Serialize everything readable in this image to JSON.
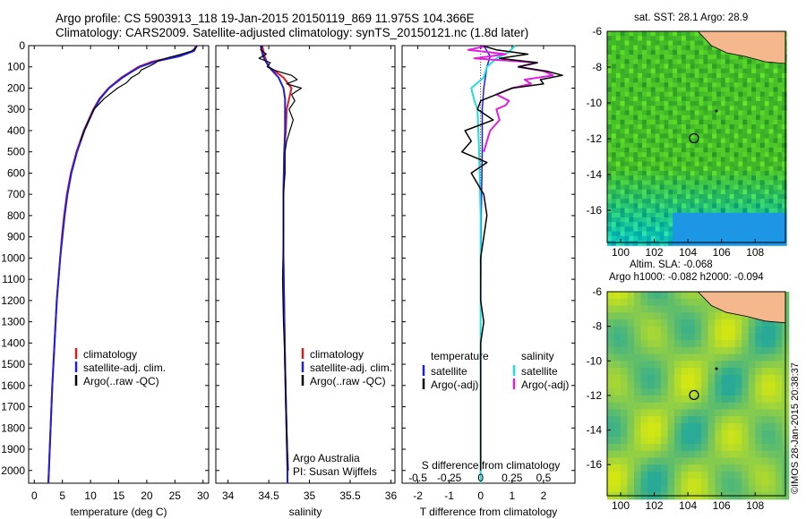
{
  "titles": {
    "line1": "Argo profile: CS 5903913_118 19-Jan-2015 20150119_869 11.975S 104.366E",
    "line2": "Climatology: CARS2009. Satellite-adjusted climatology: synTS_20150121.nc (1.8d later)"
  },
  "colors": {
    "climatology": "#e31a1c",
    "satellite": "#1f1fe0",
    "argo": "#000000",
    "sat_s": "#22dddd",
    "argo_s": "#e020e0",
    "land": "#f4b88c"
  },
  "chart_data": [
    {
      "type": "line",
      "id": "temperature",
      "xlabel": "temperature (deg C)",
      "ylim": [
        2060,
        0
      ],
      "xlim": [
        -1,
        31
      ],
      "xticks": [
        0,
        5,
        10,
        15,
        20,
        25,
        30
      ],
      "yticks": [
        0,
        100,
        200,
        300,
        400,
        500,
        600,
        700,
        800,
        900,
        1000,
        1100,
        1200,
        1300,
        1400,
        1500,
        1600,
        1700,
        1800,
        1900,
        2000
      ],
      "legend": [
        "climatology",
        "satellite-adj. clim.",
        "Argo(..raw -QC)"
      ],
      "series": [
        {
          "name": "climatology",
          "depth": [
            0,
            25,
            50,
            75,
            100,
            125,
            150,
            200,
            250,
            300,
            400,
            500,
            600,
            700,
            800,
            900,
            1000,
            1200,
            1400,
            1600,
            1800,
            2000,
            2060
          ],
          "values": [
            28.8,
            28.3,
            25.5,
            21,
            18.5,
            17,
            15.5,
            13.2,
            11.6,
            10.5,
            8.8,
            7.5,
            6.5,
            5.8,
            5.3,
            4.9,
            4.6,
            4.0,
            3.6,
            3.2,
            2.9,
            2.6,
            2.5
          ]
        },
        {
          "name": "satellite-adj. clim.",
          "depth": [
            0,
            25,
            50,
            75,
            100,
            125,
            150,
            200,
            250,
            300,
            400,
            500,
            600,
            700,
            800,
            900,
            1000,
            1200,
            1400,
            1600,
            1800,
            2000,
            2060
          ],
          "values": [
            28.9,
            28.4,
            25.8,
            21.5,
            18.8,
            17.2,
            15.7,
            13.3,
            11.7,
            10.6,
            8.9,
            7.6,
            6.6,
            5.9,
            5.4,
            5.0,
            4.6,
            4.0,
            3.6,
            3.2,
            2.9,
            2.6,
            2.5
          ]
        },
        {
          "name": "Argo(..raw -QC)",
          "depth": [
            2,
            10,
            25,
            40,
            55,
            70,
            85,
            100,
            115,
            130,
            150,
            175,
            200,
            225,
            250,
            275,
            300,
            350,
            400,
            450
          ],
          "values": [
            28.9,
            28.7,
            28.0,
            26.2,
            24.0,
            22.1,
            21.3,
            20.2,
            19.0,
            18.6,
            17.3,
            16.4,
            14.8,
            13.6,
            12.4,
            11.5,
            10.6,
            9.7,
            8.9,
            8.2
          ]
        }
      ]
    },
    {
      "type": "line",
      "id": "salinity",
      "xlabel": "salinity",
      "ylim": [
        2060,
        0
      ],
      "xlim": [
        33.85,
        36.05
      ],
      "xticks": [
        34,
        34.5,
        35,
        35.5,
        36
      ],
      "legend": [
        "climatology",
        "satellite-adj. clim.",
        "Argo(..raw -QC)"
      ],
      "annotation": [
        "Argo Australia",
        "PI: Susan Wijffels"
      ],
      "series": [
        {
          "name": "climatology",
          "depth": [
            0,
            50,
            100,
            150,
            200,
            250,
            300,
            400,
            500,
            700,
            1000,
            1500,
            2000,
            2060
          ],
          "values": [
            34.42,
            34.45,
            34.5,
            34.68,
            34.78,
            34.75,
            34.72,
            34.71,
            34.69,
            34.68,
            34.68,
            34.7,
            34.73,
            34.73
          ]
        },
        {
          "name": "satellite-adj. clim.",
          "depth": [
            0,
            50,
            100,
            150,
            200,
            250,
            300,
            400,
            500,
            700,
            1000,
            1500,
            2000,
            2060
          ],
          "values": [
            34.4,
            34.43,
            34.5,
            34.62,
            34.68,
            34.7,
            34.7,
            34.7,
            34.69,
            34.68,
            34.68,
            34.7,
            34.73,
            34.73
          ]
        },
        {
          "name": "Argo(..raw -QC)",
          "depth": [
            2,
            20,
            40,
            60,
            80,
            100,
            120,
            140,
            160,
            180,
            200,
            230,
            260,
            300,
            350,
            400,
            450,
            500,
            600,
            700,
            900,
            1100,
            1300,
            1500,
            1700,
            1900,
            2000
          ],
          "values": [
            34.42,
            34.4,
            34.47,
            34.38,
            34.52,
            34.48,
            34.6,
            34.78,
            34.85,
            34.72,
            34.9,
            34.78,
            34.82,
            34.75,
            34.8,
            34.76,
            34.72,
            34.7,
            34.7,
            34.68,
            34.68,
            34.67,
            34.68,
            34.7,
            34.71,
            34.73,
            34.74
          ]
        }
      ]
    },
    {
      "type": "line",
      "id": "difference",
      "xlabel": "T difference from climatology",
      "xlabel_top": "S difference from climatology",
      "ylim": [
        2060,
        0
      ],
      "xlim": [
        -2.5,
        3.0
      ],
      "xticks": [
        -2,
        -1,
        0,
        1,
        2
      ],
      "sticks_labels": [
        "-0.5",
        "-0.25",
        "0",
        "0.25",
        "0.5"
      ],
      "sticks_at": [
        -2,
        -1,
        0,
        1,
        2
      ],
      "legend_temp_title": "temperature",
      "legend_sal_title": "salinity",
      "legend_temp": [
        "satellite",
        "Argo(-adj)"
      ],
      "legend_sal": [
        "satellite",
        "Argo(-adj)"
      ],
      "series": [
        {
          "name": "T satellite",
          "depth": [
            0,
            50,
            100,
            150,
            200,
            300,
            500,
            800,
            1200,
            1600,
            2000,
            2060
          ],
          "values": [
            0.1,
            0.3,
            0.2,
            0.15,
            0.1,
            0.05,
            0.05,
            0.02,
            0.0,
            0.0,
            0.0,
            0.0
          ]
        },
        {
          "name": "T Argo(-adj)",
          "depth": [
            2,
            20,
            40,
            60,
            80,
            100,
            120,
            140,
            160,
            180,
            200,
            230,
            260,
            300,
            350,
            400,
            450,
            500,
            550,
            600,
            700,
            800,
            900,
            1000,
            1200,
            1300,
            1400,
            1600,
            1800,
            2000
          ],
          "values": [
            0.1,
            0.5,
            1.5,
            0.6,
            1.8,
            1.2,
            2.1,
            2.6,
            1.9,
            2.0,
            1.0,
            0.5,
            0.0,
            -0.1,
            0.4,
            -0.5,
            -0.3,
            -0.6,
            0.2,
            -0.3,
            0.1,
            0.2,
            0.1,
            0.0,
            0.0,
            0.1,
            0.0,
            0.0,
            0.0,
            0.0
          ]
        },
        {
          "name": "S satellite",
          "depth": [
            0,
            30,
            60,
            100,
            150,
            200,
            260,
            300,
            500,
            800,
            1200,
            1600,
            2000,
            2060
          ],
          "values": [
            1.1,
            0.9,
            0.5,
            0.2,
            0.1,
            -0.3,
            -0.2,
            -0.1,
            -0.05,
            0.0,
            0.0,
            0.0,
            0.0,
            0.0
          ]
        },
        {
          "name": "S Argo(-adj)",
          "depth": [
            2,
            20,
            40,
            60,
            80,
            100,
            120,
            140,
            160,
            180,
            200,
            230,
            260,
            280,
            300,
            350,
            400,
            450,
            500
          ],
          "values": [
            0.2,
            -0.4,
            0.8,
            -0.2,
            1.8,
            1.2,
            2.0,
            2.3,
            1.4,
            1.6,
            1.0,
            0.5,
            0.9,
            0.8,
            0.5,
            0.6,
            0.3,
            0.2,
            0.1
          ]
        }
      ]
    },
    {
      "type": "heatmap",
      "id": "sst-map",
      "title": "sat. SST: 28.1  Argo: 28.9",
      "xlim": [
        99.2,
        109.8
      ],
      "ylim": [
        -17.8,
        -6
      ],
      "xticks": [
        100,
        102,
        104,
        106,
        108
      ],
      "yticks": [
        -6,
        -8,
        -10,
        -12,
        -14,
        -16
      ],
      "float_position": {
        "lon": 104.366,
        "lat": -11.975
      }
    },
    {
      "type": "heatmap",
      "id": "sla-map",
      "title": "Altim. SLA: -0.068",
      "subtitle": "Argo h1000: -0.082 h2000: -0.094",
      "xlim": [
        99.2,
        109.8
      ],
      "ylim": [
        -17.8,
        -6
      ],
      "xticks": [
        100,
        102,
        104,
        106,
        108
      ],
      "yticks": [
        -6,
        -8,
        -10,
        -12,
        -14,
        -16
      ],
      "float_position": {
        "lon": 104.366,
        "lat": -11.975
      }
    }
  ],
  "watermark": "©IMOS 28-Jan-2015 20:38:37"
}
